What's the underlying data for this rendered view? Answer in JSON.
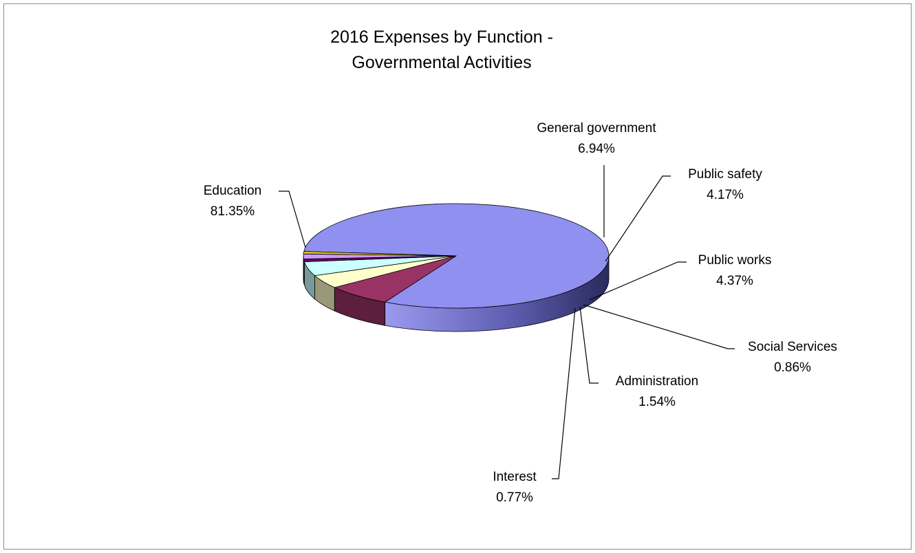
{
  "chart_data": {
    "type": "pie",
    "title_lines": [
      "2016 Expenses by Function -",
      "Governmental Activities"
    ],
    "three_d": true,
    "slices": [
      {
        "name": "Education",
        "value": 81.35,
        "label": "81.35%",
        "color": "#9090f0"
      },
      {
        "name": "General government",
        "value": 6.94,
        "label": "6.94%",
        "color": "#993366"
      },
      {
        "name": "Public safety",
        "value": 4.17,
        "label": "4.17%",
        "color": "#ffffcc"
      },
      {
        "name": "Public works",
        "value": 4.37,
        "label": "4.37%",
        "color": "#ccffff"
      },
      {
        "name": "Social Services",
        "value": 0.86,
        "label": "0.86%",
        "color": "#660066"
      },
      {
        "name": "Administration",
        "value": 1.54,
        "label": "1.54%",
        "color": "#cc99ff"
      },
      {
        "name": "Interest",
        "value": 0.77,
        "label": "0.77%",
        "color": "#e6c800"
      }
    ]
  }
}
